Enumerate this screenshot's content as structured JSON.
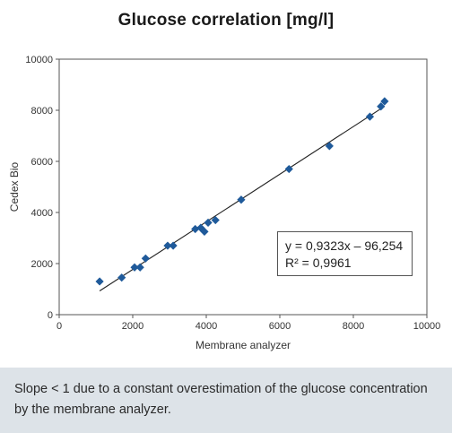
{
  "chart_data": {
    "type": "scatter",
    "title": "Glucose correlation [mg/l]",
    "xlabel": "Membrane analyzer",
    "ylabel": "Cedex Bio",
    "xlim": [
      0,
      10000
    ],
    "ylim": [
      0,
      10000
    ],
    "xticks": [
      "0",
      "2000",
      "4000",
      "6000",
      "8000",
      "10000"
    ],
    "yticks": [
      "0",
      "2000",
      "4000",
      "6000",
      "8000",
      "10000"
    ],
    "grid": false,
    "marker_color": "#1f5a9a",
    "points": [
      {
        "x": 1100,
        "y": 1300
      },
      {
        "x": 1700,
        "y": 1450
      },
      {
        "x": 2050,
        "y": 1850
      },
      {
        "x": 2200,
        "y": 1850
      },
      {
        "x": 2350,
        "y": 2200
      },
      {
        "x": 2950,
        "y": 2700
      },
      {
        "x": 3100,
        "y": 2700
      },
      {
        "x": 3700,
        "y": 3350
      },
      {
        "x": 3850,
        "y": 3400
      },
      {
        "x": 3950,
        "y": 3250
      },
      {
        "x": 4050,
        "y": 3600
      },
      {
        "x": 4250,
        "y": 3700
      },
      {
        "x": 4950,
        "y": 4500
      },
      {
        "x": 6250,
        "y": 5700
      },
      {
        "x": 7350,
        "y": 6600
      },
      {
        "x": 8450,
        "y": 7750
      },
      {
        "x": 8750,
        "y": 8150
      },
      {
        "x": 8850,
        "y": 8350
      }
    ],
    "trendline": {
      "slope": 0.9323,
      "intercept": -96.254,
      "x_range": [
        1100,
        8850
      ]
    },
    "annotation": {
      "equation": "y = 0,9323x – 96,254",
      "r_squared": "R² = 0,9961"
    }
  },
  "caption": {
    "text": "Slope < 1 due to a constant overestimation of the glucose concentration by the membrane analyzer."
  }
}
